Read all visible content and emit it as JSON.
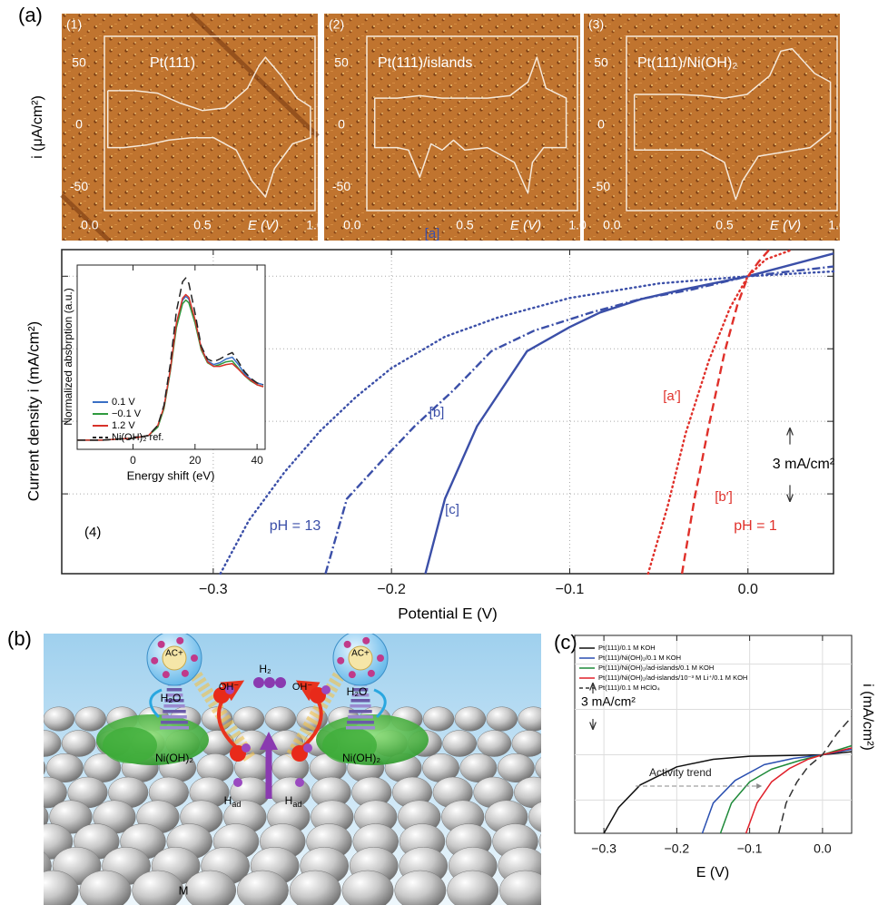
{
  "panel_labels": [
    "(a)",
    "(b)",
    "(c)"
  ],
  "chart_data": [
    {
      "type": "line",
      "panel": "(1)",
      "title": "Pt(111)",
      "color": "#f6e9da",
      "xlim": [
        0.065,
        1.0
      ],
      "ylim": [
        -69,
        72
      ],
      "xticks": [
        {
          "value": 0,
          "label": "0.0"
        },
        {
          "value": 0.5,
          "label": "0.5"
        },
        {
          "value": 1,
          "label": "1.0"
        }
      ],
      "yticks": [
        50,
        0,
        -50
      ],
      "x_label": "E (V)",
      "y_label": "i (μA/cm²)",
      "x": [
        0.08,
        0.2,
        0.3,
        0.4,
        0.5,
        0.6,
        0.7,
        0.75,
        0.78,
        0.85,
        0.92,
        0.98,
        0.98,
        0.9,
        0.82,
        0.78,
        0.72,
        0.65,
        0.55,
        0.45,
        0.35,
        0.25,
        0.15,
        0.08,
        0.08
      ],
      "values": [
        28,
        28,
        26,
        18,
        12,
        14,
        30,
        48,
        55,
        40,
        22,
        15,
        -10,
        -15,
        -35,
        -58,
        -45,
        -20,
        -10,
        -10,
        -12,
        -16,
        -18,
        -18,
        28
      ]
    },
    {
      "type": "line",
      "panel": "(2)",
      "title": "Pt(111)/islands",
      "color": "#f6e9da",
      "xlim": [
        0.065,
        1.0
      ],
      "ylim": [
        -69,
        72
      ],
      "xticks": [
        {
          "value": 0,
          "label": "0.0"
        },
        {
          "value": 0.5,
          "label": "0.5"
        },
        {
          "value": 1,
          "label": "1.0"
        }
      ],
      "yticks": [
        50,
        0,
        -50
      ],
      "x_label": "E (V)",
      "x": [
        0.1,
        0.2,
        0.3,
        0.4,
        0.5,
        0.6,
        0.7,
        0.78,
        0.82,
        0.86,
        0.95,
        0.95,
        0.85,
        0.8,
        0.78,
        0.72,
        0.6,
        0.5,
        0.45,
        0.4,
        0.35,
        0.3,
        0.25,
        0.2,
        0.1,
        0.1
      ],
      "values": [
        22,
        22,
        24,
        22,
        22,
        22,
        24,
        35,
        55,
        30,
        22,
        -18,
        -18,
        -30,
        -55,
        -30,
        -18,
        -20,
        -12,
        -20,
        -15,
        -42,
        -20,
        -18,
        -18,
        22
      ]
    },
    {
      "type": "line",
      "panel": "(3)",
      "title": "Pt(111)/Ni(OH)₂",
      "color": "#f6e9da",
      "xlim": [
        0.065,
        1.0
      ],
      "ylim": [
        -69,
        72
      ],
      "xticks": [
        {
          "value": 0,
          "label": "0.0"
        },
        {
          "value": 0.5,
          "label": "0.5"
        },
        {
          "value": 1,
          "label": "1.0"
        }
      ],
      "yticks": [
        50,
        0,
        -50
      ],
      "x_label": "E (V)",
      "x": [
        0.1,
        0.2,
        0.3,
        0.4,
        0.5,
        0.6,
        0.7,
        0.75,
        0.8,
        0.9,
        0.97,
        0.97,
        0.88,
        0.75,
        0.65,
        0.58,
        0.55,
        0.5,
        0.4,
        0.3,
        0.2,
        0.1,
        0.1
      ],
      "values": [
        25,
        25,
        25,
        24,
        22,
        25,
        40,
        60,
        62,
        42,
        35,
        -5,
        -18,
        -22,
        -25,
        -45,
        -60,
        -30,
        -20,
        -20,
        -20,
        -20,
        25
      ]
    },
    {
      "type": "line",
      "panel": "(4)",
      "xlim": [
        -0.385,
        0.048
      ],
      "ylim": [
        -12.3,
        1.1
      ],
      "xticks": [
        {
          "value": -0.3,
          "label": "−0.3"
        },
        {
          "value": -0.2,
          "label": "−0.2"
        },
        {
          "value": -0.1,
          "label": "−0.1"
        },
        {
          "value": 0,
          "label": "0.0"
        }
      ],
      "yticks": [
        0,
        -3,
        -6,
        -9
      ],
      "grid": true,
      "x_label": "Potential E (V)",
      "y_label": "Current density i (mA/cm²)",
      "series": [
        {
          "name": "[a]",
          "color": "#3b4fa8",
          "style": "dotted",
          "x": [
            -0.296,
            -0.28,
            -0.26,
            -0.24,
            -0.22,
            -0.2,
            -0.17,
            -0.14,
            -0.1,
            -0.05,
            0,
            0.048
          ],
          "values": [
            -12.3,
            -10.1,
            -8.1,
            -6.4,
            -5.0,
            -3.8,
            -2.5,
            -1.7,
            -0.9,
            -0.3,
            0,
            0.2
          ]
        },
        {
          "name": "[b]",
          "color": "#3b4fa8",
          "style": "dashdot",
          "x": [
            -0.237,
            -0.225,
            -0.205,
            -0.187,
            -0.165,
            -0.144,
            -0.12,
            -0.088,
            -0.06,
            -0.032,
            0,
            0.048
          ],
          "values": [
            -12.3,
            -9.2,
            -7.6,
            -6.2,
            -4.7,
            -3.1,
            -2.25,
            -1.5,
            -0.94,
            -0.56,
            0,
            0.4
          ]
        },
        {
          "name": "[c]",
          "color": "#3b4fa8",
          "style": "solid",
          "x": [
            -0.181,
            -0.17,
            -0.152,
            -0.124,
            -0.1,
            -0.083,
            -0.06,
            -0.037,
            0,
            0.048
          ],
          "values": [
            -12.3,
            -9.2,
            -6.2,
            -3.1,
            -2.1,
            -1.5,
            -0.95,
            -0.56,
            0,
            0.94
          ]
        },
        {
          "name": "[a′]",
          "color": "#e0302a",
          "style": "dotted",
          "x": [
            -0.056,
            -0.045,
            -0.035,
            -0.022,
            -0.01,
            0,
            0.01,
            0.025
          ],
          "values": [
            -12.3,
            -9.5,
            -6.5,
            -3.5,
            -1.3,
            0,
            0.7,
            1.1
          ]
        },
        {
          "name": "[b′]",
          "color": "#e0302a",
          "style": "dashed",
          "x": [
            -0.037,
            -0.03,
            -0.022,
            -0.013,
            -0.006,
            0,
            0.006,
            0.012
          ],
          "values": [
            -12.3,
            -9.2,
            -6.2,
            -3.1,
            -1.2,
            0,
            0.6,
            1.1
          ]
        }
      ],
      "annotations": [
        {
          "text": "pH = 13",
          "color": "#3b4fa8"
        },
        {
          "text": "pH = 1",
          "color": "#e0302a"
        }
      ],
      "scale_bar": {
        "value": 3,
        "label": "3 mA/cm²"
      }
    },
    {
      "type": "line",
      "xlim": [
        -18,
        42.6
      ],
      "ylim": [
        -0.1,
        1.9
      ],
      "xticks": [
        0,
        20,
        40
      ],
      "x_label": "Energy shift (eV)",
      "y_label": "Normalized absorption (a.u.)",
      "x": [
        -18,
        -10,
        -5,
        0,
        5,
        8,
        10,
        12,
        14,
        16,
        17,
        18,
        20,
        22,
        24,
        26,
        28,
        30,
        32,
        34,
        36,
        38,
        40,
        42
      ],
      "series": [
        {
          "name": "0.1 V",
          "color": "#3a6fc4",
          "style": "solid",
          "values": [
            0,
            0,
            0.01,
            0.02,
            0.05,
            0.15,
            0.35,
            0.75,
            1.25,
            1.52,
            1.56,
            1.53,
            1.3,
            1.0,
            0.86,
            0.82,
            0.84,
            0.88,
            0.9,
            0.82,
            0.72,
            0.66,
            0.62,
            0.6
          ]
        },
        {
          "name": "−0.1 V",
          "color": "#2e9a3e",
          "style": "solid",
          "values": [
            0,
            0,
            0.01,
            0.02,
            0.05,
            0.14,
            0.34,
            0.74,
            1.22,
            1.48,
            1.52,
            1.49,
            1.27,
            0.98,
            0.84,
            0.8,
            0.82,
            0.85,
            0.86,
            0.78,
            0.7,
            0.64,
            0.6,
            0.58
          ]
        },
        {
          "name": "1.2 V",
          "color": "#d8322a",
          "style": "solid",
          "values": [
            0,
            0,
            0.01,
            0.02,
            0.05,
            0.16,
            0.36,
            0.76,
            1.27,
            1.54,
            1.58,
            1.55,
            1.31,
            1.0,
            0.85,
            0.8,
            0.8,
            0.82,
            0.83,
            0.77,
            0.7,
            0.65,
            0.6,
            0.58
          ]
        },
        {
          "name": "Ni(OH)₂ ref.",
          "color": "#222222",
          "style": "dashed",
          "values": [
            0,
            0,
            0.01,
            0.02,
            0.05,
            0.16,
            0.38,
            0.82,
            1.4,
            1.72,
            1.76,
            1.7,
            1.38,
            1.02,
            0.88,
            0.85,
            0.88,
            0.92,
            0.95,
            0.85,
            0.74,
            0.67,
            0.62,
            0.6
          ]
        }
      ]
    },
    {
      "type": "line",
      "xlim": [
        -0.34,
        0.04
      ],
      "ylim": [
        -5.2,
        7.9
      ],
      "xticks": [
        {
          "value": -0.3,
          "label": "−0.3"
        },
        {
          "value": -0.2,
          "label": "−0.2"
        },
        {
          "value": -0.1,
          "label": "−0.1"
        },
        {
          "value": 0,
          "label": "0.0"
        }
      ],
      "yticks": [
        -3,
        0,
        3,
        6
      ],
      "grid": true,
      "x_label": "E (V)",
      "y_label": "i (mA/cm²)",
      "series": [
        {
          "name": "Pt(111)/0.1 M KOH",
          "color": "#111111",
          "style": "solid",
          "x": [
            -0.3,
            -0.28,
            -0.25,
            -0.2,
            -0.15,
            -0.1,
            0,
            0.04
          ],
          "values": [
            -5.2,
            -3.5,
            -2.0,
            -0.8,
            -0.3,
            -0.1,
            0,
            0.2
          ]
        },
        {
          "name": "Pt(111)/Ni(OH)₂/0.1 M KOH",
          "color": "#2a4fb0",
          "style": "solid",
          "x": [
            -0.165,
            -0.15,
            -0.12,
            -0.08,
            -0.04,
            0,
            0.04
          ],
          "values": [
            -5.2,
            -3.2,
            -1.7,
            -0.66,
            -0.24,
            0,
            0.36
          ]
        },
        {
          "name": "Pt(111)/Ni(OH)₂/ad-islands/0.1 M KOH",
          "color": "#1f8a3a",
          "style": "solid",
          "x": [
            -0.14,
            -0.125,
            -0.1,
            -0.07,
            -0.03,
            0,
            0.04
          ],
          "values": [
            -5.2,
            -3.2,
            -1.8,
            -0.96,
            -0.36,
            0,
            0.6
          ]
        },
        {
          "name": "Pt(111)/Ni(OH)₂/ad-islands/10⁻³ M Li⁺/0.1 M KOH",
          "color": "#e0202a",
          "style": "solid",
          "x": [
            -0.105,
            -0.09,
            -0.07,
            -0.045,
            -0.02,
            0,
            0.04
          ],
          "values": [
            -5.2,
            -3.2,
            -1.8,
            -0.9,
            -0.3,
            0,
            0.45
          ]
        },
        {
          "name": "Pt(111)/0.1 M HClO₄",
          "color": "#333333",
          "style": "dashed",
          "x": [
            -0.06,
            -0.05,
            -0.035,
            -0.02,
            0,
            0.02,
            0.04
          ],
          "values": [
            -5.2,
            -3.2,
            -1.8,
            -0.8,
            0,
            1.4,
            2.5
          ]
        }
      ],
      "annotations": [
        {
          "text": "Activity trend",
          "color": "#222222"
        }
      ],
      "scale_bar": {
        "value": 3,
        "label": "3 mA/cm²"
      }
    }
  ],
  "diagram": {
    "cation_labels": [
      "AC+",
      "AC+"
    ],
    "water_labels": [
      "H₂O",
      "H₂O"
    ],
    "support_labels": [
      "Ni(OH)₂",
      "Ni(OH)₂"
    ],
    "hydroxide_labels": [
      "OH⁻",
      "OH⁻"
    ],
    "product_label": "H₂",
    "adsorbed_labels": [
      {
        "main": "H",
        "sub": "ad"
      },
      {
        "main": "H",
        "sub": "ad"
      }
    ],
    "metal_label": "M"
  }
}
